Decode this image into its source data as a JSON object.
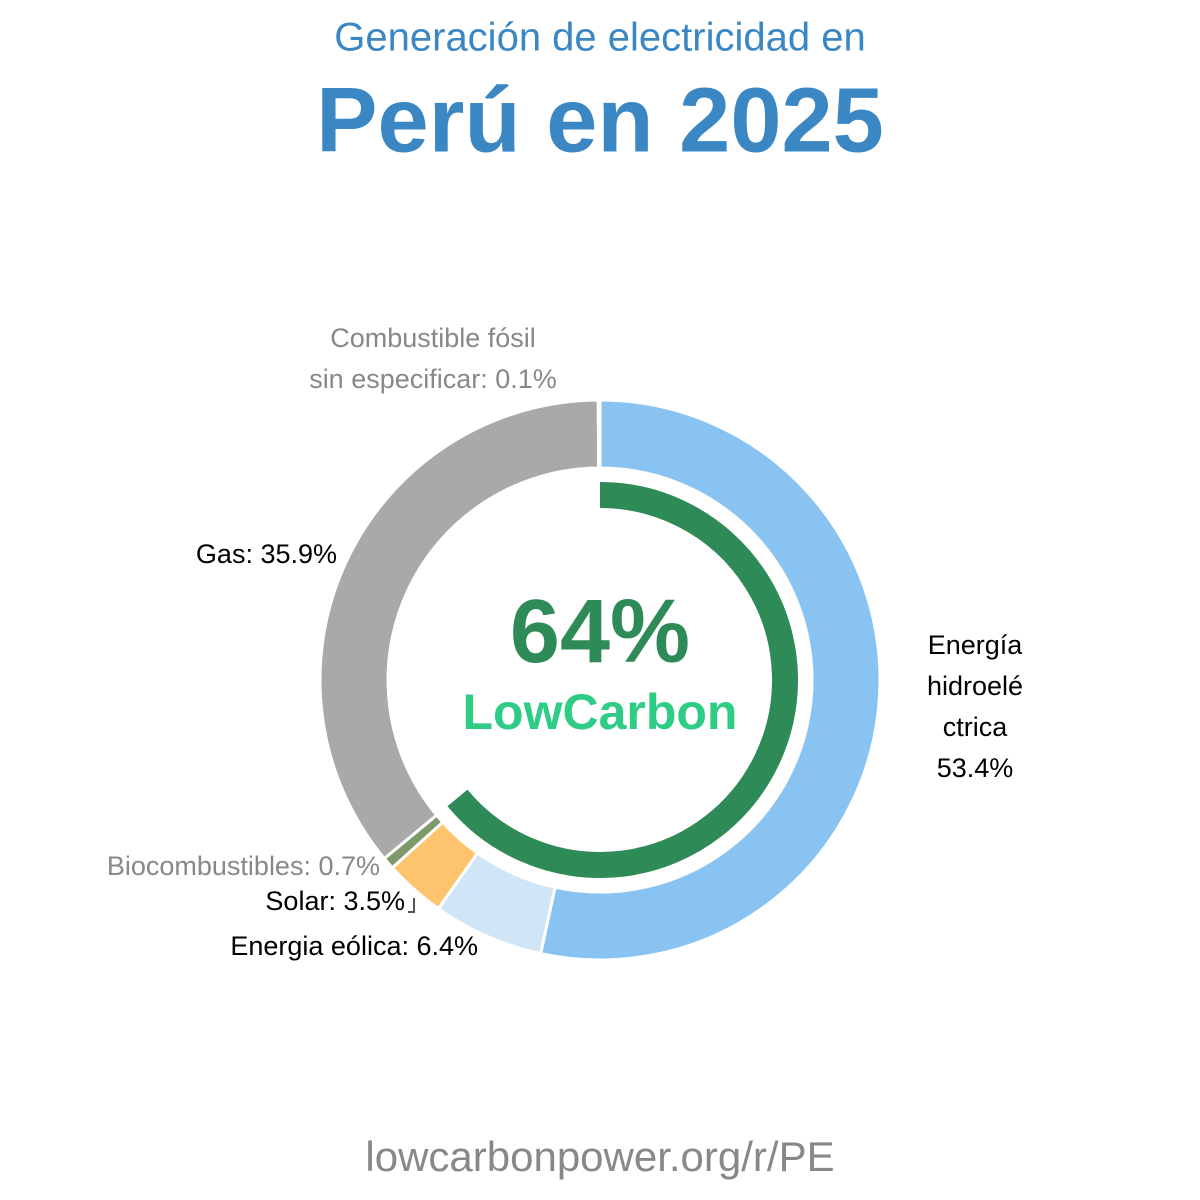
{
  "subtitle": "Generación de electricidad en",
  "title": "Perú en 2025",
  "chart_data": {
    "type": "donut",
    "values": [
      53.4,
      6.4,
      3.5,
      0.7,
      35.9,
      0.1
    ],
    "colors": [
      "#89c3f2",
      "#d0e6f7",
      "#fdc46d",
      "#7f9a6a",
      "#a9a9a9",
      "#a9a9a9"
    ],
    "value_labels": [
      [
        "Energía",
        "hidroelé",
        "ctrica",
        "53.4%"
      ],
      [
        "Energia eólica: 6.4%"
      ],
      [
        "Solar: 3.5%"
      ],
      [
        "Biocombustibles: 0.7%"
      ],
      [
        "Gas: 35.9%"
      ],
      [
        "Combustible fósil",
        "sin especificar: 0.1%"
      ]
    ],
    "low_carbon": {
      "value": 64,
      "label": "64%"
    },
    "low_carbon_color": "#2e8b57",
    "brand": "LowCarbon"
  },
  "footer": "lowcarbonpower.org/r/PE"
}
